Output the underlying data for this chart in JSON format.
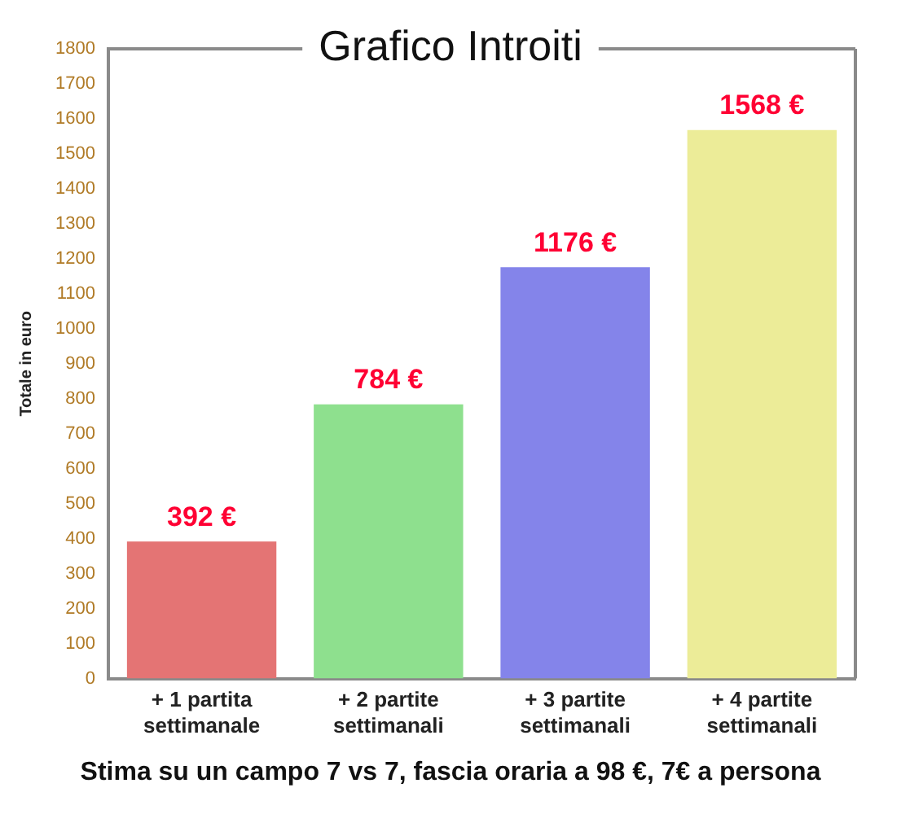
{
  "chart_data": {
    "type": "bar",
    "title": "Grafico Introiti",
    "ylabel": "Totale in euro",
    "categories": [
      "+ 1 partita settimanale",
      "+ 2 partite settimanali",
      "+ 3 partite settimanali",
      "+ 4 partite settimanali"
    ],
    "values": [
      392,
      784,
      1176,
      1568
    ],
    "colors": [
      "#e47474",
      "#8ee08e",
      "#8484ea",
      "#ecec98"
    ],
    "value_labels": [
      "392 €",
      "784 €",
      "1176 €",
      "1568 €"
    ],
    "ylim": [
      0,
      1800
    ],
    "yticks": [
      0,
      100,
      200,
      300,
      400,
      500,
      600,
      700,
      800,
      900,
      1000,
      1100,
      1200,
      1300,
      1400,
      1500,
      1600,
      1700,
      1800
    ],
    "annotations": [
      "Stima su un campo 7 vs 7, fascia oraria a 98 €, 7€ a persona"
    ]
  }
}
